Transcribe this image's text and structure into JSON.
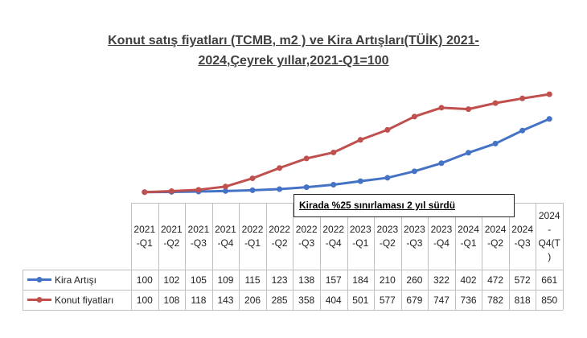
{
  "chart_data": {
    "type": "line",
    "title": "Konut satış fiyatları (TCMB, m2 ) ve Kira Artışları(TÜİK) 2021-2024,Çeyrek yıllar,2021-Q1=100",
    "annotation": "Kirada %25 sınırlaması 2 yıl sürdü",
    "categories": [
      "2021-Q1",
      "2021-Q2",
      "2021-Q3",
      "2021-Q4",
      "2022-Q1",
      "2022-Q2",
      "2022-Q3",
      "2022-Q4",
      "2023-Q1",
      "2023-Q2",
      "2023-Q3",
      "2023-Q4",
      "2024-Q1",
      "2024-Q2",
      "2024-Q3",
      "2024-Q4(T)"
    ],
    "series": [
      {
        "name": "Kira Artışı",
        "color": "#4472c4",
        "values": [
          100,
          102,
          105,
          109,
          115,
          123,
          138,
          157,
          184,
          210,
          260,
          322,
          402,
          472,
          572,
          661
        ]
      },
      {
        "name": "Konut fiyatları",
        "color": "#c0504d",
        "values": [
          100,
          108,
          118,
          143,
          206,
          285,
          358,
          404,
          501,
          577,
          679,
          747,
          736,
          782,
          818,
          850
        ]
      }
    ],
    "ylim": [
      0,
      900
    ]
  }
}
